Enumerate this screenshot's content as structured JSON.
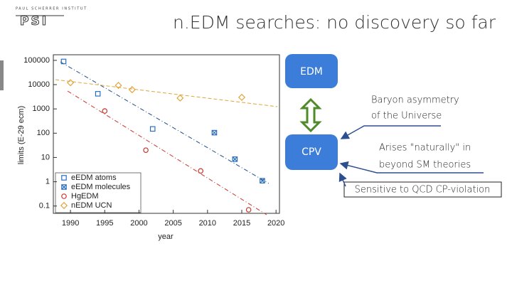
{
  "slide": {
    "title": "n.EDM searches: no discovery so far",
    "logo_top": "PAUL SCHERRER INSTITUT",
    "logo": "PSI"
  },
  "diagram": {
    "edm": "EDM",
    "cpv": "CPV",
    "baryon": [
      "Baryon asymmetry",
      "of the Universe"
    ],
    "arises": [
      "Arises \"naturally\" in",
      "beyond SM theories"
    ],
    "qcd": "Sensitive to QCD CP-violation"
  },
  "chart_data": {
    "type": "scatter",
    "x_label": "year",
    "y_label": "limits (E-29 ecm)",
    "xlim": [
      1987.5,
      2020.5
    ],
    "ylim": [
      0.05,
      170000
    ],
    "log_y": true,
    "legend": "lower left",
    "xticks": [
      1990,
      1995,
      2000,
      2005,
      2010,
      2015,
      2020
    ],
    "yticks": [
      0.1,
      1,
      10,
      100,
      1000,
      10000,
      100000
    ],
    "series": [
      {
        "name": "eEDM atoms",
        "color": "#2a6ebb",
        "marker": "square",
        "x": [
          1989,
          1994,
          2002
        ],
        "values": [
          90000,
          4200,
          150
        ]
      },
      {
        "name": "eEDM molecules",
        "color": "#2a6ebb",
        "marker": "square-x",
        "x": [
          2011,
          2014,
          2018
        ],
        "values": [
          105,
          8.5,
          1.1
        ]
      },
      {
        "name": "HgEDM",
        "color": "#c8372d",
        "marker": "circle",
        "x": [
          1995,
          2001,
          2009,
          2016
        ],
        "values": [
          820,
          20,
          2.8,
          0.07
        ]
      },
      {
        "name": "nEDM UCN",
        "color": "#e3a33a",
        "marker": "diamond",
        "x": [
          1990,
          1997,
          1999,
          2006,
          2015
        ],
        "values": [
          12000,
          9300,
          6200,
          2800,
          3000
        ]
      }
    ]
  }
}
